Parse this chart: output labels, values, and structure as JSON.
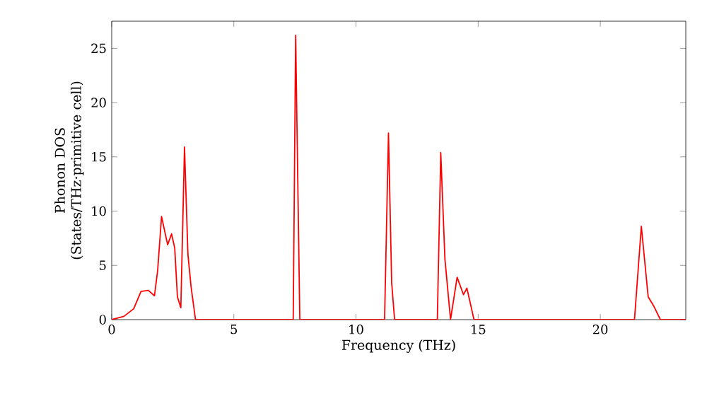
{
  "chart_data": {
    "type": "line",
    "xlabel": "Frequency (THz)",
    "ylabel": "Phonon DOS (States/THz·primitive cell)",
    "series": [
      {
        "color": "#ff0000",
        "x": [
          0,
          0.5,
          0.9,
          1.2,
          1.5,
          1.75,
          1.88,
          2.04,
          2.29,
          2.45,
          2.58,
          2.69,
          2.83,
          2.98,
          3.12,
          3.25,
          3.43,
          7.43,
          7.53,
          7.7,
          11.17,
          11.33,
          11.46,
          11.58,
          13.33,
          13.47,
          13.64,
          13.87,
          14.14,
          14.4,
          14.54,
          14.83,
          21.4,
          21.68,
          21.96,
          22.2,
          22.46,
          23.5
        ],
        "values": [
          0,
          0.3,
          1.0,
          2.6,
          2.7,
          2.2,
          4.5,
          9.5,
          6.9,
          7.9,
          6.6,
          2.1,
          1.1,
          15.9,
          6.0,
          3.0,
          0,
          0,
          26.2,
          0,
          0,
          17.2,
          3.4,
          0,
          0,
          15.4,
          5.6,
          0,
          3.9,
          2.3,
          2.9,
          0,
          0,
          8.6,
          2.1,
          1.2,
          0,
          0
        ]
      }
    ],
    "xlim": [
      0,
      23.5
    ],
    "ylim": [
      0,
      27.5
    ],
    "xticks": [
      0,
      5,
      10,
      15,
      20
    ],
    "yticks": [
      0,
      5,
      10,
      15,
      20,
      25
    ],
    "marker": "none",
    "line_style": "solid"
  }
}
